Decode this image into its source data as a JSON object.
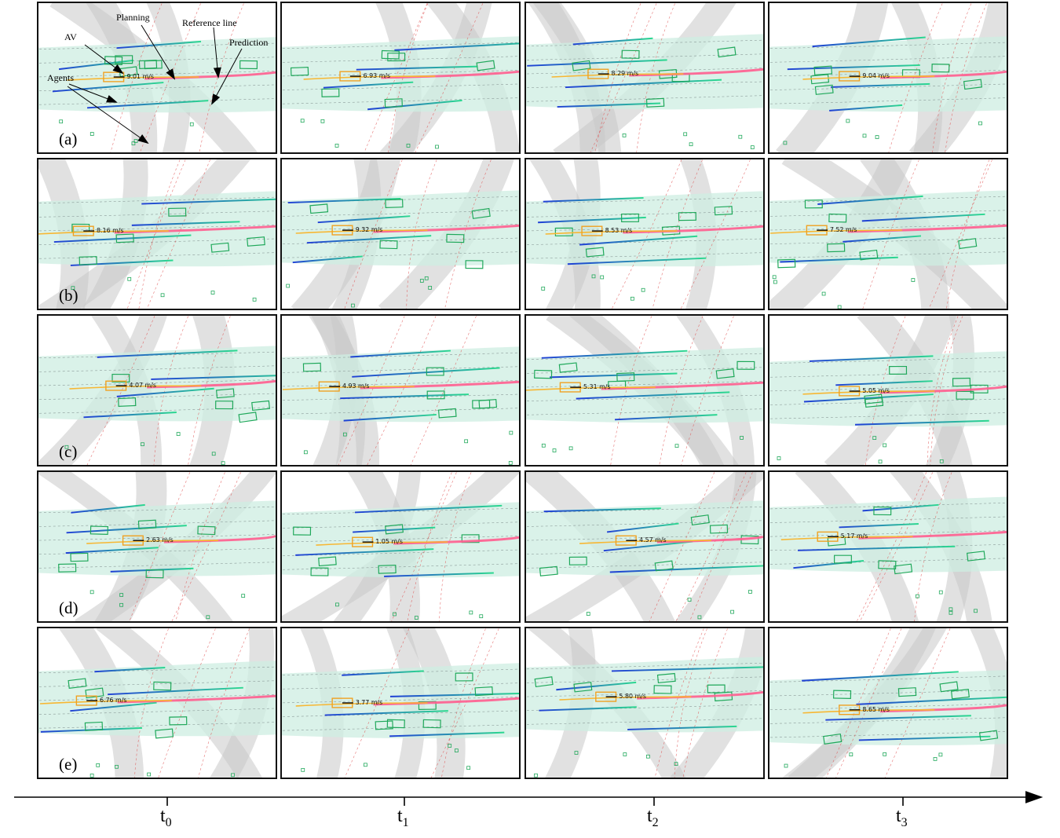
{
  "row_labels": [
    "(a)",
    "(b)",
    "(c)",
    "(d)",
    "(e)"
  ],
  "speeds": [
    [
      "9.01 m/s",
      "6.93 m/s",
      "8.29 m/s",
      "9.04 m/s"
    ],
    [
      "8.16 m/s",
      "9.32 m/s",
      "8.53 m/s",
      "7.52 m/s"
    ],
    [
      "4.07 m/s",
      "4.93 m/s",
      "5.31 m/s",
      "5.05 m/s"
    ],
    [
      "2.63 m/s",
      "1.05 m/s",
      "4.57 m/s",
      "5.17 m/s"
    ],
    [
      "6.76 m/s",
      "3.77 m/s",
      "5.80 m/s",
      "8.65 m/s"
    ]
  ],
  "annotations": {
    "av": "AV",
    "planning": "Planning",
    "reference_line": "Reference line",
    "prediction": "Prediction",
    "agents": "Agents"
  },
  "time_axis": {
    "ticks": [
      {
        "t": "t",
        "sub": "0"
      },
      {
        "t": "t",
        "sub": "1"
      },
      {
        "t": "t",
        "sub": "2"
      },
      {
        "t": "t",
        "sub": "3"
      }
    ]
  },
  "colors": {
    "lane_fill": "#cdeee2",
    "road_gray": "#c8c8c8",
    "av_box": "#f0a020",
    "agent_box": "#1fa85a",
    "planning": "#f7b733",
    "reference": "#ff5d8f",
    "prediction_start": "#1f3fd6",
    "prediction_end": "#2bd98f"
  }
}
